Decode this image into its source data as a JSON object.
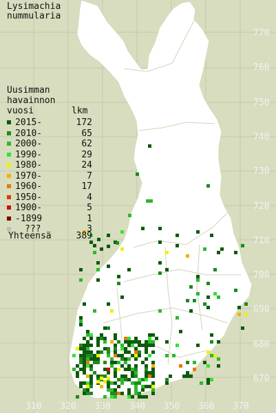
{
  "title": {
    "line1": "Lysimachia",
    "line2": "nummularia"
  },
  "legend": {
    "header": [
      "Uusimman",
      "havainnon",
      "vuosi"
    ],
    "count_header": "lkm",
    "rows": [
      {
        "label": "2015-",
        "count": "172",
        "color": "#0e5a0e"
      },
      {
        "label": "2010-",
        "count": "65",
        "color": "#1f8a1f"
      },
      {
        "label": "2000-",
        "count": "62",
        "color": "#2fb82f"
      },
      {
        "label": "1990-",
        "count": "29",
        "color": "#38e038"
      },
      {
        "label": "1980-",
        "count": "24",
        "color": "#f0f000"
      },
      {
        "label": "1970-",
        "count": "7",
        "color": "#f0b400"
      },
      {
        "label": "1960-",
        "count": "17",
        "color": "#e8780c"
      },
      {
        "label": "1950-",
        "count": "4",
        "color": "#e33a0a"
      },
      {
        "label": "1900-",
        "count": "5",
        "color": "#cc1010"
      },
      {
        "label": "-1899",
        "count": "1",
        "color": "#7a0a0a"
      },
      {
        "label": "???",
        "count": "3",
        "color": "#bdbdbd"
      }
    ],
    "total_label": "Yhteensä",
    "total_count": "389"
  },
  "y_ticks": [
    "770",
    "760",
    "750",
    "740",
    "730",
    "720",
    "710",
    "700",
    "690",
    "680",
    "670"
  ],
  "x_ticks": [
    "310",
    "320",
    "330",
    "340",
    "350",
    "360",
    "370"
  ],
  "colors": {
    "background": "#d8ddbf",
    "land": "#ffffff",
    "grid": "#c9cdb0",
    "tick_text": "#f2f2f2"
  }
}
